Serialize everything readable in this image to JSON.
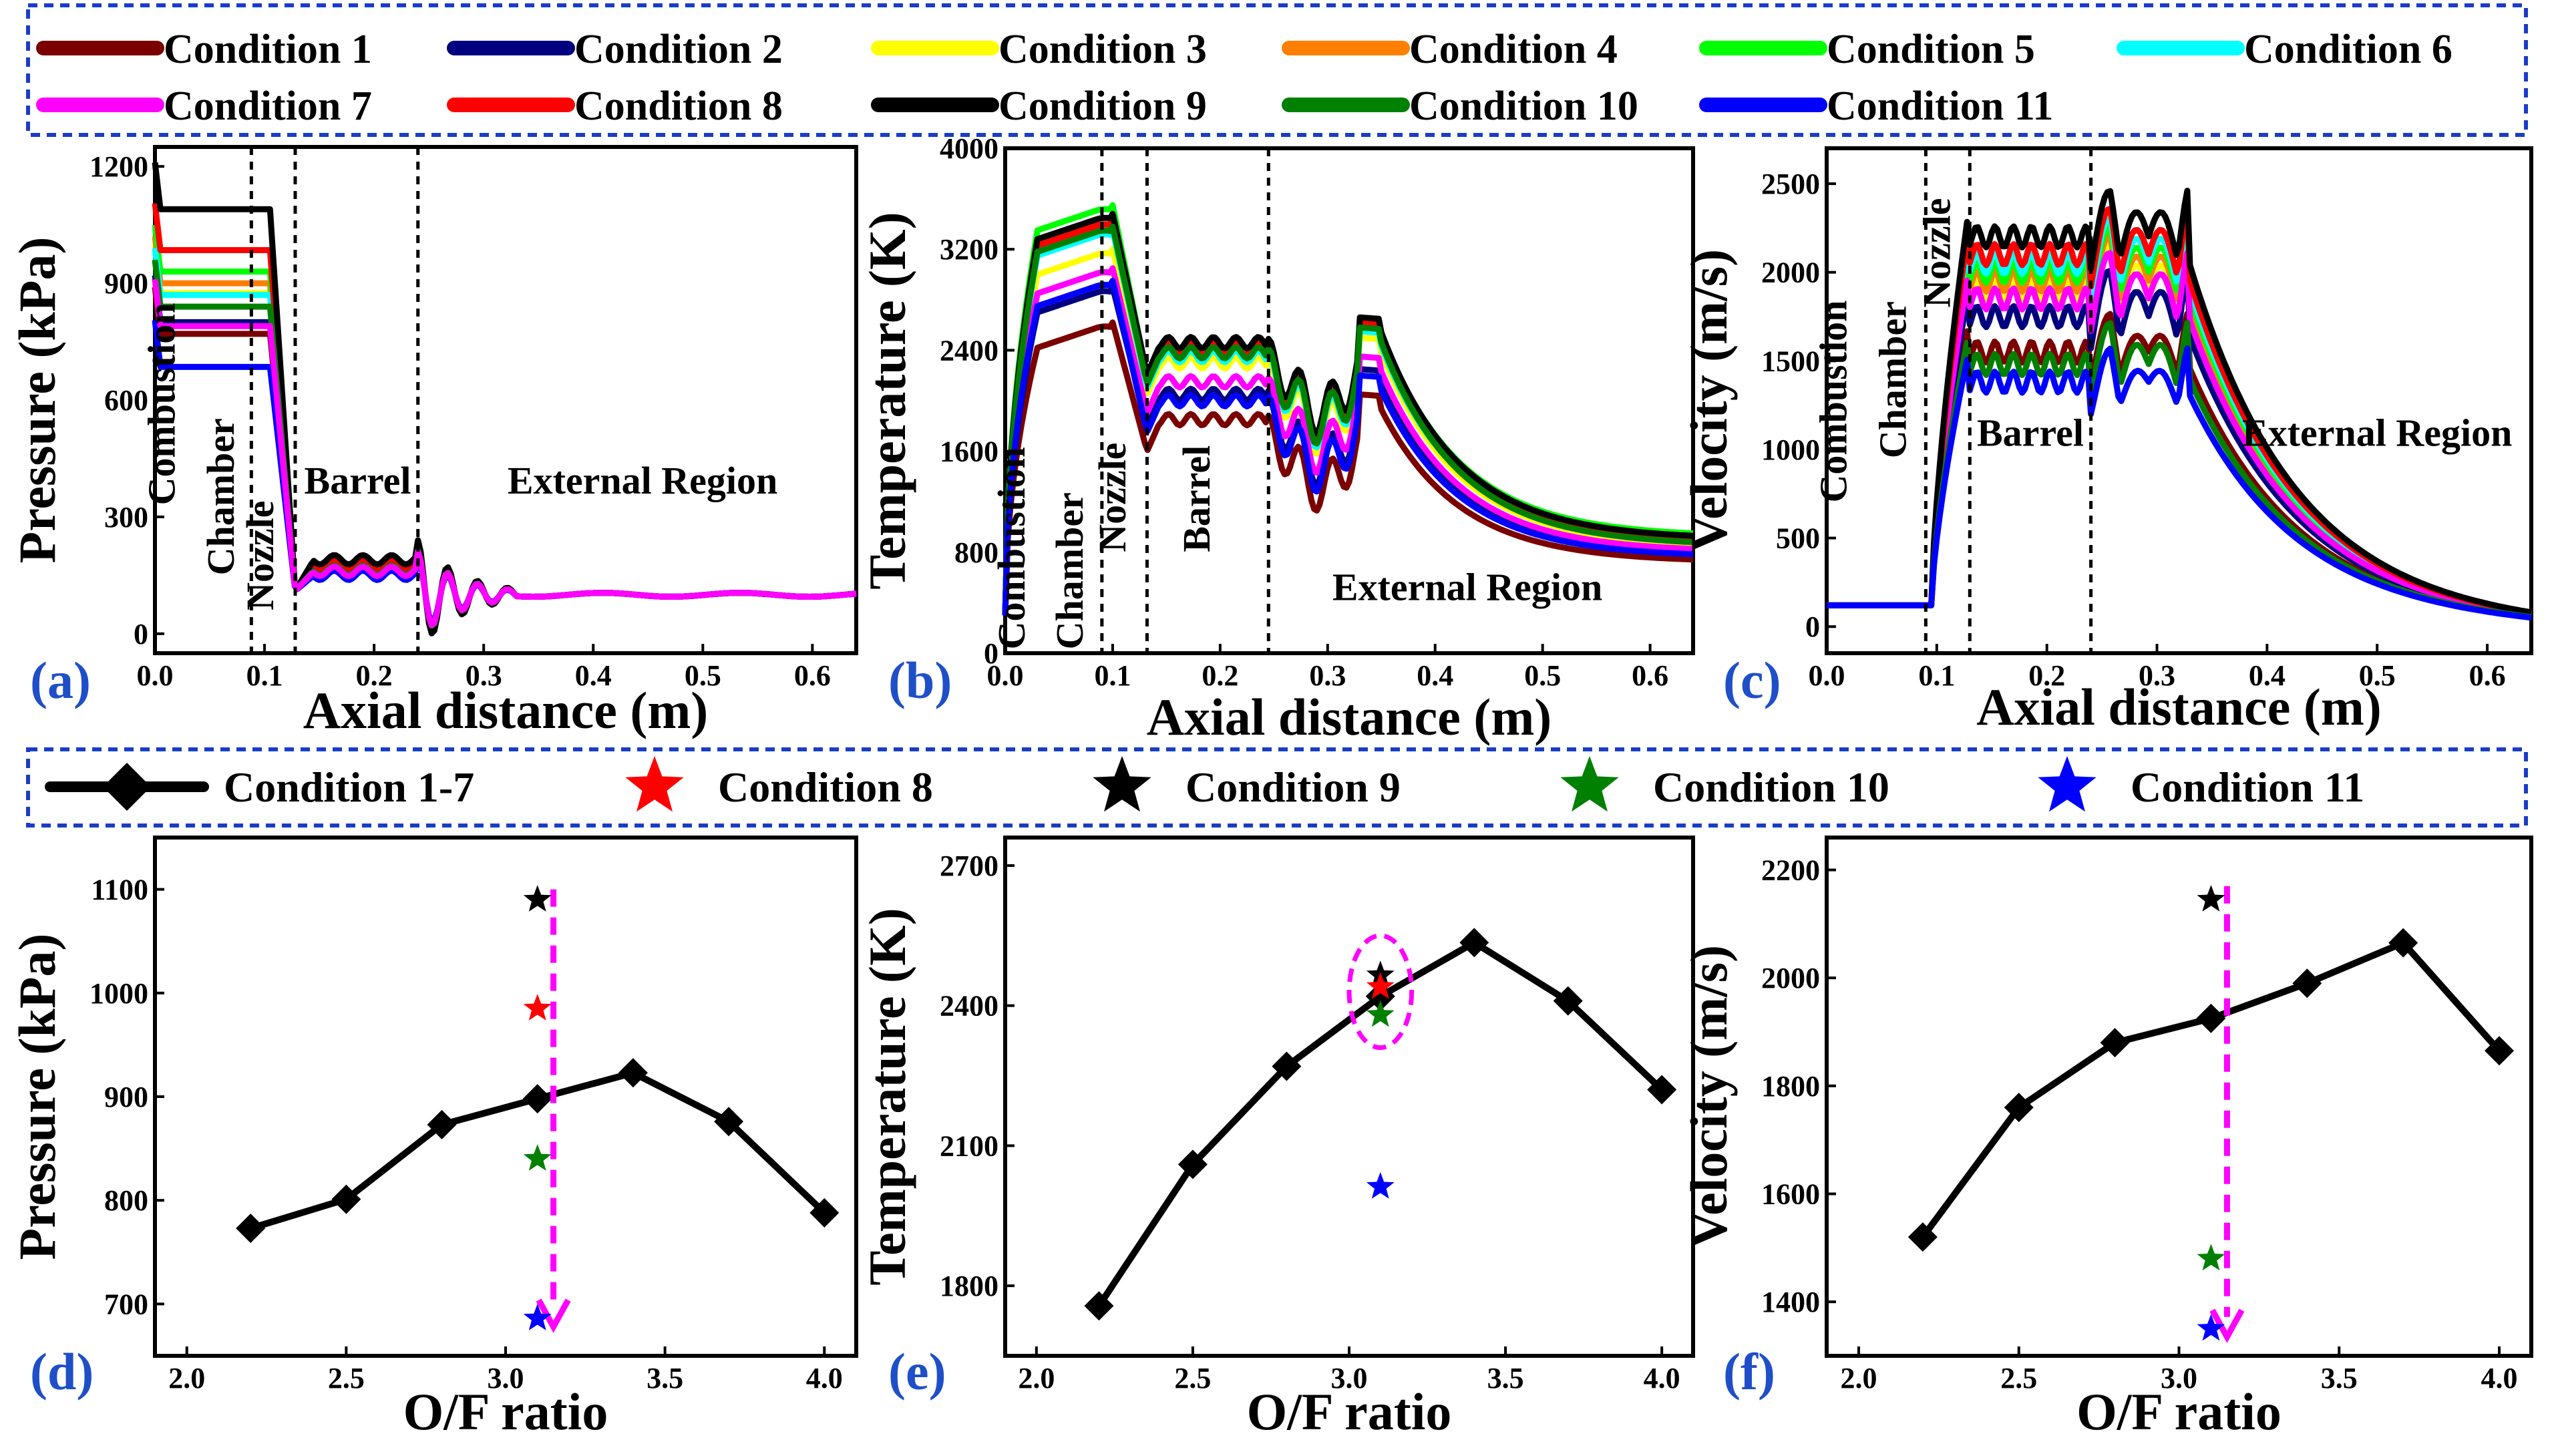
{
  "colors": {
    "c1": "#7b0000",
    "c2": "#00007f",
    "c3": "#ffff00",
    "c4": "#ff7f00",
    "c5": "#00ff00",
    "c6": "#00ffff",
    "c7": "#ff00ff",
    "c8": "#ff0000",
    "c9": "#000000",
    "c10": "#008000",
    "c11": "#0000ff",
    "legend_border": "#1a3cc8",
    "arrow": "#ff00ff"
  },
  "legend_top": [
    {
      "label": "Condition 1",
      "color": "#7b0000"
    },
    {
      "label": "Condition 2",
      "color": "#00007f"
    },
    {
      "label": "Condition 3",
      "color": "#ffff00"
    },
    {
      "label": "Condition 4",
      "color": "#ff7f00"
    },
    {
      "label": "Condition 5",
      "color": "#00ff00"
    },
    {
      "label": "Condition 6",
      "color": "#00ffff"
    },
    {
      "label": "Condition 7",
      "color": "#ff00ff"
    },
    {
      "label": "Condition 8",
      "color": "#ff0000"
    },
    {
      "label": "Condition 9",
      "color": "#000000"
    },
    {
      "label": "Condition 10",
      "color": "#008000"
    },
    {
      "label": "Condition 11",
      "color": "#0000ff"
    }
  ],
  "legend_bottom": [
    {
      "label": "Condition 1-7",
      "kind": "line",
      "color": "#000000"
    },
    {
      "label": "Condition 8",
      "kind": "star",
      "color": "#ff0000"
    },
    {
      "label": "Condition 9",
      "kind": "star",
      "color": "#000000"
    },
    {
      "label": "Condition 10",
      "kind": "star",
      "color": "#008000"
    },
    {
      "label": "Condition 11",
      "kind": "star",
      "color": "#0000ff"
    }
  ],
  "chart_data": [
    {
      "id": "a",
      "type": "line",
      "panel_label": "(a)",
      "xlabel": "Axial distance (m)",
      "ylabel": "Pressure (kPa)",
      "xlim": [
        0,
        0.64
      ],
      "ylim": [
        -50,
        1250
      ],
      "xticks": [
        0.0,
        0.1,
        0.2,
        0.3,
        0.4,
        0.5,
        0.6
      ],
      "xtick_labels": [
        "0.0",
        "0.1",
        "0.2",
        "0.3",
        "0.4",
        "0.5",
        "0.6"
      ],
      "yticks": [
        0,
        300,
        600,
        900,
        1200
      ],
      "ytick_labels": [
        "0",
        "300",
        "600",
        "900",
        "1200"
      ],
      "region_dividers": [
        0.088,
        0.128,
        0.24
      ],
      "region_labels": [
        {
          "text": "Combustion",
          "x": 0.018,
          "y": 330,
          "rotate": true
        },
        {
          "text": "Chamber",
          "x": 0.072,
          "y": 150,
          "rotate": true
        },
        {
          "text": "Nozzle",
          "x": 0.108,
          "y": 60,
          "rotate": true
        },
        {
          "text": "Barrel",
          "x": 0.185,
          "y": 360,
          "rotate": false
        },
        {
          "text": "External Region",
          "x": 0.445,
          "y": 360,
          "rotate": false
        }
      ],
      "profile_kind": "pressure",
      "series": [
        {
          "name": "Condition 1",
          "color": "#7b0000",
          "plateau": 770,
          "barrel": 160
        },
        {
          "name": "Condition 2",
          "color": "#00007f",
          "plateau": 800,
          "barrel": 162
        },
        {
          "name": "Condition 3",
          "color": "#ffff00",
          "plateau": 875,
          "barrel": 168
        },
        {
          "name": "Condition 4",
          "color": "#ff7f00",
          "plateau": 900,
          "barrel": 170
        },
        {
          "name": "Condition 5",
          "color": "#00ff00",
          "plateau": 930,
          "barrel": 172
        },
        {
          "name": "Condition 6",
          "color": "#00ffff",
          "plateau": 870,
          "barrel": 165
        },
        {
          "name": "Condition 8",
          "color": "#ff0000",
          "plateau": 985,
          "barrel": 178
        },
        {
          "name": "Condition 9",
          "color": "#000000",
          "plateau": 1090,
          "barrel": 190
        },
        {
          "name": "Condition 10",
          "color": "#008000",
          "plateau": 840,
          "barrel": 163
        },
        {
          "name": "Condition 11",
          "color": "#0000ff",
          "plateau": 685,
          "barrel": 150
        },
        {
          "name": "Condition 7",
          "color": "#ff00ff",
          "plateau": 790,
          "barrel": 160
        }
      ]
    },
    {
      "id": "b",
      "type": "line",
      "panel_label": "(b)",
      "xlabel": "Axial distance (m)",
      "ylabel": "Temperature (K)",
      "xlim": [
        0,
        0.64
      ],
      "ylim": [
        0,
        4000
      ],
      "xticks": [
        0.0,
        0.1,
        0.2,
        0.3,
        0.4,
        0.5,
        0.6
      ],
      "xtick_labels": [
        "0.0",
        "0.1",
        "0.2",
        "0.3",
        "0.4",
        "0.5",
        "0.6"
      ],
      "yticks": [
        0,
        800,
        1600,
        2400,
        3200,
        4000
      ],
      "ytick_labels": [
        "0",
        "800",
        "1600",
        "2400",
        "3200",
        "4000"
      ],
      "region_dividers": [
        0.09,
        0.132,
        0.245
      ],
      "region_labels": [
        {
          "text": "Combustion",
          "x": 0.018,
          "y": 30,
          "rotate": true
        },
        {
          "text": "Chamber",
          "x": 0.072,
          "y": 30,
          "rotate": true
        },
        {
          "text": "Nozzle",
          "x": 0.112,
          "y": 800,
          "rotate": true
        },
        {
          "text": "Barrel",
          "x": 0.19,
          "y": 800,
          "rotate": true
        },
        {
          "text": "External Region",
          "x": 0.43,
          "y": 420,
          "rotate": false
        }
      ],
      "profile_kind": "temperature",
      "series": [
        {
          "name": "Condition 1",
          "color": "#7b0000",
          "plateau": 2620,
          "barrel": 1850,
          "tail": 720
        },
        {
          "name": "Condition 2",
          "color": "#00007f",
          "plateau": 2900,
          "barrel": 2050,
          "tail": 780
        },
        {
          "name": "Condition 3",
          "color": "#ffff00",
          "plateau": 3200,
          "barrel": 2300,
          "tail": 840
        },
        {
          "name": "Condition 4",
          "color": "#ff7f00",
          "plateau": 3400,
          "barrel": 2400,
          "tail": 880
        },
        {
          "name": "Condition 5",
          "color": "#00ff00",
          "plateau": 3550,
          "barrel": 2450,
          "tail": 920
        },
        {
          "name": "Condition 6",
          "color": "#00ffff",
          "plateau": 3350,
          "barrel": 2350,
          "tail": 870
        },
        {
          "name": "Condition 7",
          "color": "#ff00ff",
          "plateau": 3050,
          "barrel": 2150,
          "tail": 800
        },
        {
          "name": "Condition 8",
          "color": "#ff0000",
          "plateau": 3430,
          "barrel": 2420,
          "tail": 860
        },
        {
          "name": "Condition 9",
          "color": "#000000",
          "plateau": 3480,
          "barrel": 2460,
          "tail": 900
        },
        {
          "name": "Condition 10",
          "color": "#008000",
          "plateau": 3380,
          "barrel": 2380,
          "tail": 850
        },
        {
          "name": "Condition 11",
          "color": "#0000ff",
          "plateau": 2950,
          "barrel": 2000,
          "tail": 760
        }
      ]
    },
    {
      "id": "c",
      "type": "line",
      "panel_label": "(c)",
      "xlabel": "Axial distance (m)",
      "ylabel": "Velocity (m/s)",
      "xlim": [
        0,
        0.64
      ],
      "ylim": [
        -150,
        2700
      ],
      "xticks": [
        0.0,
        0.1,
        0.2,
        0.3,
        0.4,
        0.5,
        0.6
      ],
      "xtick_labels": [
        "0.0",
        "0.1",
        "0.2",
        "0.3",
        "0.4",
        "0.5",
        "0.6"
      ],
      "yticks": [
        0,
        500,
        1000,
        1500,
        2000,
        2500
      ],
      "ytick_labels": [
        "0",
        "500",
        "1000",
        "1500",
        "2000",
        "2500"
      ],
      "region_dividers": [
        0.09,
        0.13,
        0.24
      ],
      "region_labels": [
        {
          "text": "Combustion",
          "x": 0.018,
          "y": 700,
          "rotate": true
        },
        {
          "text": "Chamber",
          "x": 0.072,
          "y": 950,
          "rotate": true
        },
        {
          "text": "Nozzle",
          "x": 0.112,
          "y": 1800,
          "rotate": true
        },
        {
          "text": "Barrel",
          "x": 0.185,
          "y": 1020,
          "rotate": false
        },
        {
          "text": "External Region",
          "x": 0.5,
          "y": 1020,
          "rotate": false
        }
      ],
      "profile_kind": "velocity",
      "series": [
        {
          "name": "Condition 1",
          "color": "#7b0000",
          "barrel": 1550,
          "peak": 1800
        },
        {
          "name": "Condition 2",
          "color": "#00007f",
          "barrel": 1750,
          "peak": 2050
        },
        {
          "name": "Condition 3",
          "color": "#ffff00",
          "barrel": 1900,
          "peak": 2200
        },
        {
          "name": "Condition 4",
          "color": "#ff7f00",
          "barrel": 1950,
          "peak": 2250
        },
        {
          "name": "Condition 5",
          "color": "#00ff00",
          "barrel": 2000,
          "peak": 2300
        },
        {
          "name": "Condition 6",
          "color": "#00ffff",
          "barrel": 2050,
          "peak": 2350
        },
        {
          "name": "Condition 7",
          "color": "#ff00ff",
          "barrel": 1850,
          "peak": 2150
        },
        {
          "name": "Condition 8",
          "color": "#ff0000",
          "barrel": 2100,
          "peak": 2400
        },
        {
          "name": "Condition 9",
          "color": "#000000",
          "barrel": 2200,
          "peak": 2500
        },
        {
          "name": "Condition 10",
          "color": "#008000",
          "barrel": 1480,
          "peak": 1750
        },
        {
          "name": "Condition 11",
          "color": "#0000ff",
          "barrel": 1380,
          "peak": 1600
        }
      ]
    },
    {
      "id": "d",
      "type": "scatter",
      "panel_label": "(d)",
      "xlabel": "O/F ratio",
      "ylabel": "Pressure (kPa)",
      "xlim": [
        1.9,
        4.1
      ],
      "ylim": [
        650,
        1150
      ],
      "xticks": [
        2.0,
        2.5,
        3.0,
        3.5,
        4.0
      ],
      "xtick_labels": [
        "2.0",
        "2.5",
        "3.0",
        "3.5",
        "4.0"
      ],
      "yticks": [
        700,
        800,
        900,
        1000,
        1100
      ],
      "ytick_labels": [
        "700",
        "800",
        "900",
        "1000",
        "1100"
      ],
      "line": {
        "name": "Condition 1-7",
        "x": [
          2.2,
          2.5,
          2.8,
          3.1,
          3.4,
          3.7,
          4.0
        ],
        "y": [
          773,
          801,
          873,
          898,
          923,
          876,
          788
        ]
      },
      "stars": [
        {
          "name": "Condition 9",
          "x": 3.1,
          "y": 1090,
          "color": "#000000"
        },
        {
          "name": "Condition 8",
          "x": 3.1,
          "y": 985,
          "color": "#ff0000"
        },
        {
          "name": "Condition 10",
          "x": 3.1,
          "y": 840,
          "color": "#008000"
        },
        {
          "name": "Condition 11",
          "x": 3.1,
          "y": 686,
          "color": "#0000ff"
        }
      ],
      "arrow": {
        "x": 3.15,
        "y_from": 1100,
        "y_to": 678
      }
    },
    {
      "id": "e",
      "type": "scatter",
      "panel_label": "(e)",
      "xlabel": "O/F ratio",
      "ylabel": "Temperature (K)",
      "xlim": [
        1.9,
        4.1
      ],
      "ylim": [
        1650,
        2760
      ],
      "xticks": [
        2.0,
        2.5,
        3.0,
        3.5,
        4.0
      ],
      "xtick_labels": [
        "2.0",
        "2.5",
        "3.0",
        "3.5",
        "4.0"
      ],
      "yticks": [
        1800,
        2100,
        2400,
        2700
      ],
      "ytick_labels": [
        "1800",
        "2100",
        "2400",
        "2700"
      ],
      "line": {
        "name": "Condition 1-7",
        "x": [
          2.2,
          2.5,
          2.8,
          3.1,
          3.4,
          3.7,
          4.0
        ],
        "y": [
          1757,
          2060,
          2270,
          2420,
          2535,
          2410,
          2220
        ]
      },
      "stars": [
        {
          "name": "Condition 9",
          "x": 3.1,
          "y": 2465,
          "color": "#000000"
        },
        {
          "name": "Condition 8",
          "x": 3.1,
          "y": 2440,
          "color": "#ff0000"
        },
        {
          "name": "Condition 10",
          "x": 3.1,
          "y": 2380,
          "color": "#008000"
        },
        {
          "name": "Condition 11",
          "x": 3.1,
          "y": 2012,
          "color": "#0000ff"
        }
      ],
      "ellipse": {
        "cx": 3.1,
        "cy": 2430,
        "rx": 0.1,
        "ry": 120
      }
    },
    {
      "id": "f",
      "type": "scatter",
      "panel_label": "(f)",
      "xlabel": "O/F ratio",
      "ylabel": "Velocity (m/s)",
      "xlim": [
        1.9,
        4.1
      ],
      "ylim": [
        1300,
        2260
      ],
      "xticks": [
        2.0,
        2.5,
        3.0,
        3.5,
        4.0
      ],
      "xtick_labels": [
        "2.0",
        "2.5",
        "3.0",
        "3.5",
        "4.0"
      ],
      "yticks": [
        1400,
        1600,
        1800,
        2000,
        2200
      ],
      "ytick_labels": [
        "1400",
        "1600",
        "1800",
        "2000",
        "2200"
      ],
      "line": {
        "name": "Condition 1-7",
        "x": [
          2.2,
          2.5,
          2.8,
          3.1,
          3.4,
          3.7,
          4.0
        ],
        "y": [
          1520,
          1760,
          1880,
          1925,
          1990,
          2065,
          1865
        ]
      },
      "stars": [
        {
          "name": "Condition 9",
          "x": 3.1,
          "y": 2145,
          "color": "#000000"
        },
        {
          "name": "Condition 10",
          "x": 3.1,
          "y": 1480,
          "color": "#008000"
        },
        {
          "name": "Condition 11",
          "x": 3.1,
          "y": 1350,
          "color": "#0000ff"
        }
      ],
      "arrow": {
        "x": 3.15,
        "y_from": 2170,
        "y_to": 1335
      }
    }
  ]
}
